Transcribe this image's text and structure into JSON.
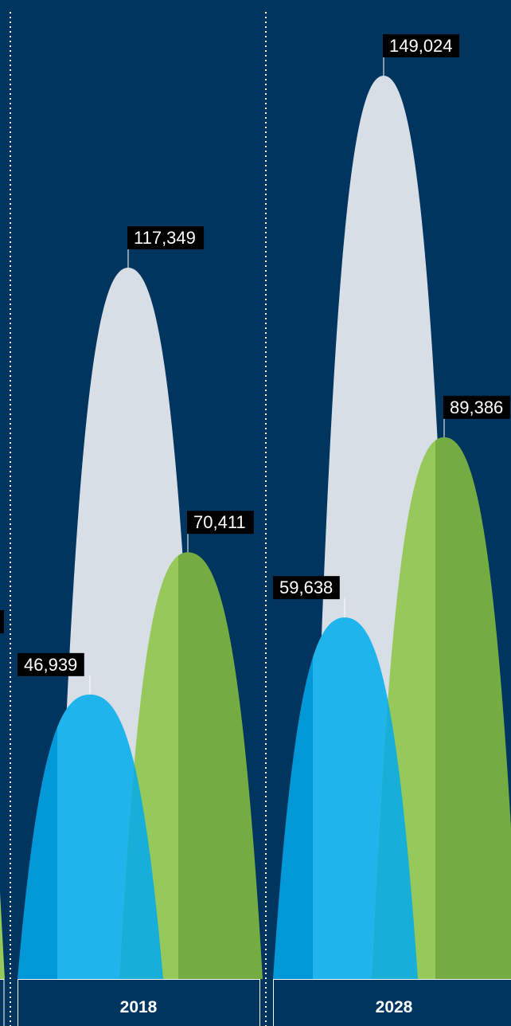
{
  "chart_data": {
    "type": "area",
    "title": "",
    "xlabel": "",
    "ylabel": "",
    "categories": [
      "2018",
      "2028"
    ],
    "series": [
      {
        "key": "blue",
        "values": [
          46939,
          59638
        ],
        "colors": {
          "left": "#0098D7",
          "right": "#1FB4EC"
        }
      },
      {
        "key": "white",
        "values": [
          117349,
          149024
        ],
        "colors": {
          "left": "#D8DEE6",
          "right": "#D8DEE6"
        }
      },
      {
        "key": "green",
        "values": [
          70411,
          89386
        ],
        "colors": {
          "left": "#96C85A",
          "right": "#74AC42"
        }
      }
    ],
    "data_labels": [
      [
        "46,939",
        "117,349",
        "70,411"
      ],
      [
        "59,638",
        "149,024",
        "89,386"
      ]
    ],
    "ylim": [
      0,
      160000
    ],
    "grid": false,
    "legend": "none"
  },
  "colors": {
    "background": "#003560",
    "overlap": "#17AFD8",
    "label_bg": "#000000",
    "label_text": "#FFFFFF",
    "divider": "#FFFFFF"
  }
}
